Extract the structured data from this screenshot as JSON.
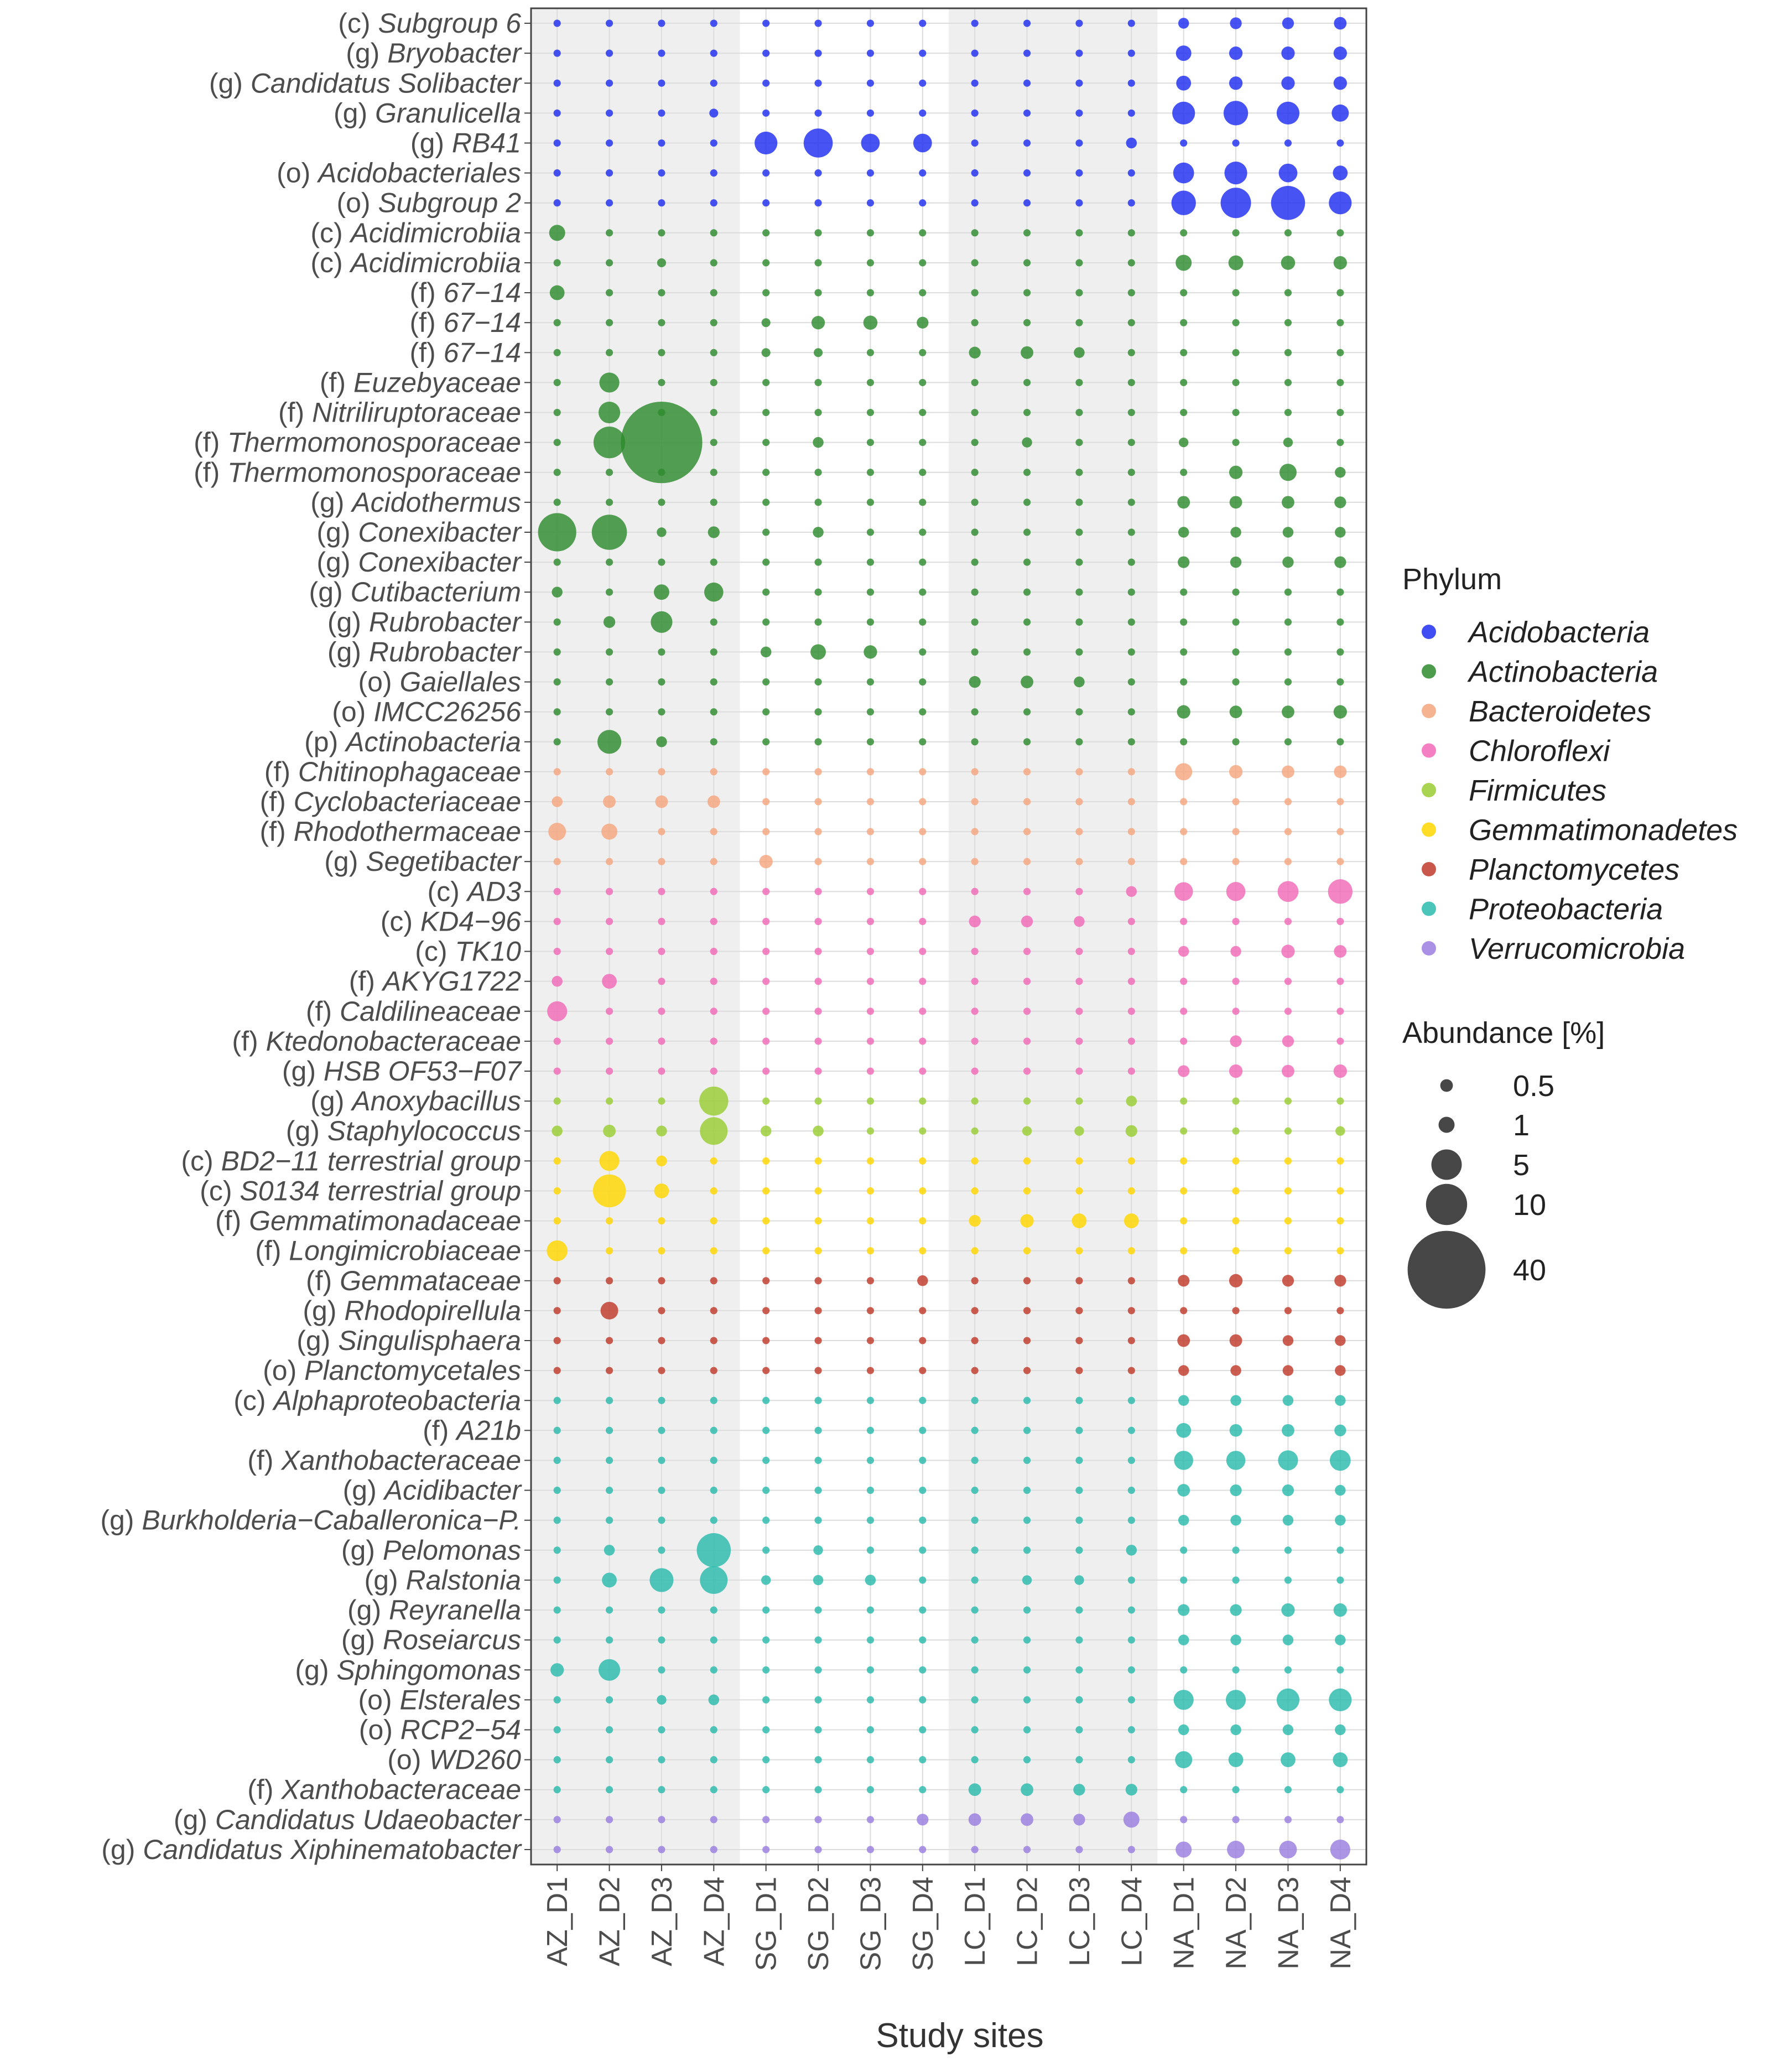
{
  "chart_data": {
    "type": "bubble-matrix",
    "xlabel": "Study sites",
    "ylabel": "",
    "sites": [
      "AZ_D1",
      "AZ_D2",
      "AZ_D3",
      "AZ_D4",
      "SG_D1",
      "SG_D2",
      "SG_D3",
      "SG_D4",
      "LC_D1",
      "LC_D2",
      "LC_D3",
      "LC_D4",
      "NA_D1",
      "NA_D2",
      "NA_D3",
      "NA_D4"
    ],
    "shaded_site_groups": [
      "AZ",
      "LC"
    ],
    "phyla": [
      {
        "name": "Acidobacteria",
        "color": "#1f2ef0"
      },
      {
        "name": "Actinobacteria",
        "color": "#2e8b2e"
      },
      {
        "name": "Bacteroidetes",
        "color": "#f5a67f"
      },
      {
        "name": "Chloroflexi",
        "color": "#f26ab8"
      },
      {
        "name": "Firmicutes",
        "color": "#9acd32"
      },
      {
        "name": "Gemmatimonadetes",
        "color": "#ffd700"
      },
      {
        "name": "Planctomycetes",
        "color": "#c0392b"
      },
      {
        "name": "Proteobacteria",
        "color": "#2bbbad"
      },
      {
        "name": "Verrucomicrobia",
        "color": "#9b7ee0"
      }
    ],
    "legend": {
      "phylum_title": "Phylum",
      "size_title": "Abundance [%]",
      "size_breaks": [
        {
          "value": 0.5,
          "label": "0.5"
        },
        {
          "value": 1,
          "label": "1"
        },
        {
          "value": 5,
          "label": "5"
        },
        {
          "value": 10,
          "label": "10"
        },
        {
          "value": 40,
          "label": "40"
        }
      ]
    },
    "default_abundance": 0.06,
    "taxa": [
      {
        "rank": "(c)",
        "name": "Subgroup 6",
        "phylum": "Acidobacteria",
        "values": {
          "NA_D1": 0.3,
          "NA_D2": 0.4,
          "NA_D3": 0.4,
          "NA_D4": 0.5
        }
      },
      {
        "rank": "(g)",
        "name": "Bryobacter",
        "phylum": "Acidobacteria",
        "values": {
          "NA_D1": 0.9,
          "NA_D2": 0.6,
          "NA_D3": 0.6,
          "NA_D4": 0.6
        }
      },
      {
        "rank": "(g)",
        "name": "Candidatus Solibacter",
        "phylum": "Acidobacteria",
        "values": {
          "NA_D1": 0.8,
          "NA_D2": 0.6,
          "NA_D3": 0.6,
          "NA_D4": 0.6
        }
      },
      {
        "rank": "(g)",
        "name": "Granulicella",
        "phylum": "Acidobacteria",
        "values": {
          "AZ_D4": 0.15,
          "NA_D1": 2.5,
          "NA_D2": 3.0,
          "NA_D3": 2.5,
          "NA_D4": 1.2
        }
      },
      {
        "rank": "(g)",
        "name": "RB41",
        "phylum": "Acidobacteria",
        "values": {
          "SG_D1": 2.5,
          "SG_D2": 4.5,
          "SG_D3": 1.5,
          "SG_D4": 1.5,
          "LC_D4": 0.3
        }
      },
      {
        "rank": "(o)",
        "name": "Acidobacteriales",
        "phylum": "Acidobacteria",
        "values": {
          "NA_D1": 2.0,
          "NA_D2": 2.5,
          "NA_D3": 1.5,
          "NA_D4": 0.8
        }
      },
      {
        "rank": "(o)",
        "name": "Subgroup 2",
        "phylum": "Acidobacteria",
        "values": {
          "NA_D1": 3.0,
          "NA_D2": 5.0,
          "NA_D3": 6.5,
          "NA_D4": 2.5
        }
      },
      {
        "rank": "(c)",
        "name": "Acidimicrobiia",
        "phylum": "Actinobacteria",
        "values": {
          "AZ_D1": 1.0
        }
      },
      {
        "rank": "(c)",
        "name": "Acidimicrobiia",
        "phylum": "Actinobacteria",
        "values": {
          "AZ_D3": 0.15,
          "NA_D1": 1.0,
          "NA_D2": 0.8,
          "NA_D3": 0.7,
          "NA_D4": 0.6
        }
      },
      {
        "rank": "(f)",
        "name": "67−14",
        "phylum": "Actinobacteria",
        "values": {
          "AZ_D1": 0.8
        }
      },
      {
        "rank": "(f)",
        "name": "67−14",
        "phylum": "Actinobacteria",
        "values": {
          "SG_D1": 0.15,
          "SG_D2": 0.6,
          "SG_D3": 0.7,
          "SG_D4": 0.4
        }
      },
      {
        "rank": "(f)",
        "name": "67−14",
        "phylum": "Actinobacteria",
        "values": {
          "SG_D1": 0.15,
          "SG_D2": 0.15,
          "LC_D1": 0.4,
          "LC_D2": 0.5,
          "LC_D3": 0.3
        }
      },
      {
        "rank": "(f)",
        "name": "Euzebyaceae",
        "phylum": "Actinobacteria",
        "values": {
          "AZ_D2": 1.8
        }
      },
      {
        "rank": "(f)",
        "name": "Nitriliruptoraceae",
        "phylum": "Actinobacteria",
        "values": {
          "AZ_D2": 2.2
        }
      },
      {
        "rank": "(f)",
        "name": "Thermomonosporaceae",
        "phylum": "Actinobacteria",
        "values": {
          "AZ_D2": 5.5,
          "AZ_D3": 44,
          "SG_D2": 0.3,
          "LC_D2": 0.25,
          "NA_D1": 0.2,
          "NA_D3": 0.2
        }
      },
      {
        "rank": "(f)",
        "name": "Thermomonosporaceae",
        "phylum": "Actinobacteria",
        "values": {
          "NA_D2": 0.6,
          "NA_D3": 1.2,
          "NA_D4": 0.3
        }
      },
      {
        "rank": "(g)",
        "name": "Acidothermus",
        "phylum": "Actinobacteria",
        "values": {
          "NA_D1": 0.5,
          "NA_D2": 0.5,
          "NA_D3": 0.5,
          "NA_D4": 0.4
        }
      },
      {
        "rank": "(g)",
        "name": "Conexibacter",
        "phylum": "Actinobacteria",
        "values": {
          "AZ_D1": 8.5,
          "AZ_D2": 7.0,
          "AZ_D3": 0.2,
          "AZ_D4": 0.4,
          "SG_D2": 0.3,
          "NA_D1": 0.3,
          "NA_D2": 0.3,
          "NA_D3": 0.3,
          "NA_D4": 0.3
        }
      },
      {
        "rank": "(g)",
        "name": "Conexibacter",
        "phylum": "Actinobacteria",
        "values": {
          "NA_D1": 0.4,
          "NA_D2": 0.35,
          "NA_D3": 0.35,
          "NA_D4": 0.4
        }
      },
      {
        "rank": "(g)",
        "name": "Cutibacterium",
        "phylum": "Actinobacteria",
        "values": {
          "AZ_D1": 0.3,
          "AZ_D3": 0.9,
          "AZ_D4": 1.6
        }
      },
      {
        "rank": "(g)",
        "name": "Rubrobacter",
        "phylum": "Actinobacteria",
        "values": {
          "AZ_D2": 0.4,
          "AZ_D3": 2.2
        }
      },
      {
        "rank": "(g)",
        "name": "Rubrobacter",
        "phylum": "Actinobacteria",
        "values": {
          "SG_D1": 0.3,
          "SG_D2": 0.9,
          "SG_D3": 0.6
        }
      },
      {
        "rank": "(o)",
        "name": "Gaiellales",
        "phylum": "Actinobacteria",
        "values": {
          "LC_D1": 0.4,
          "LC_D2": 0.5,
          "LC_D3": 0.3
        }
      },
      {
        "rank": "(o)",
        "name": "IMCC26256",
        "phylum": "Actinobacteria",
        "values": {
          "NA_D1": 0.6,
          "NA_D2": 0.5,
          "NA_D3": 0.5,
          "NA_D4": 0.6
        }
      },
      {
        "rank": "(p)",
        "name": "Actinobacteria",
        "phylum": "Actinobacteria",
        "values": {
          "AZ_D2": 2.8,
          "AZ_D3": 0.3
        }
      },
      {
        "rank": "(f)",
        "name": "Chitinophagaceae",
        "phylum": "Bacteroidetes",
        "values": {
          "NA_D1": 1.2,
          "NA_D2": 0.6,
          "NA_D3": 0.5,
          "NA_D4": 0.5
        }
      },
      {
        "rank": "(f)",
        "name": "Cyclobacteriaceae",
        "phylum": "Bacteroidetes",
        "values": {
          "AZ_D1": 0.3,
          "AZ_D2": 0.5,
          "AZ_D3": 0.5,
          "AZ_D4": 0.5
        }
      },
      {
        "rank": "(f)",
        "name": "Rhodothermaceae",
        "phylum": "Bacteroidetes",
        "values": {
          "AZ_D1": 1.3,
          "AZ_D2": 1.0
        }
      },
      {
        "rank": "(g)",
        "name": "Segetibacter",
        "phylum": "Bacteroidetes",
        "values": {
          "SG_D1": 0.6
        }
      },
      {
        "rank": "(c)",
        "name": "AD3",
        "phylum": "Chloroflexi",
        "values": {
          "LC_D4": 0.3,
          "NA_D1": 1.5,
          "NA_D2": 1.6,
          "NA_D3": 2.0,
          "NA_D4": 3.0
        }
      },
      {
        "rank": "(c)",
        "name": "KD4−96",
        "phylum": "Chloroflexi",
        "values": {
          "LC_D1": 0.4,
          "LC_D2": 0.4,
          "LC_D3": 0.3
        }
      },
      {
        "rank": "(c)",
        "name": "TK10",
        "phylum": "Chloroflexi",
        "values": {
          "NA_D1": 0.3,
          "NA_D2": 0.3,
          "NA_D3": 0.6,
          "NA_D4": 0.5
        }
      },
      {
        "rank": "(f)",
        "name": "AKYG1722",
        "phylum": "Chloroflexi",
        "values": {
          "AZ_D1": 0.3,
          "AZ_D2": 0.8
        }
      },
      {
        "rank": "(f)",
        "name": "Caldilineaceae",
        "phylum": "Chloroflexi",
        "values": {
          "AZ_D1": 1.8
        }
      },
      {
        "rank": "(f)",
        "name": "Ktedonobacteraceae",
        "phylum": "Chloroflexi",
        "values": {
          "NA_D2": 0.4,
          "NA_D3": 0.4
        }
      },
      {
        "rank": "(g)",
        "name": "HSB OF53−F07",
        "phylum": "Chloroflexi",
        "values": {
          "NA_D1": 0.4,
          "NA_D2": 0.6,
          "NA_D3": 0.5,
          "NA_D4": 0.6
        }
      },
      {
        "rank": "(g)",
        "name": "Anoxybacillus",
        "phylum": "Firmicutes",
        "values": {
          "AZ_D4": 4.5,
          "LC_D4": 0.3
        }
      },
      {
        "rank": "(g)",
        "name": "Staphylococcus",
        "phylum": "Firmicutes",
        "values": {
          "AZ_D1": 0.3,
          "AZ_D2": 0.5,
          "AZ_D3": 0.3,
          "AZ_D4": 4.0,
          "SG_D1": 0.3,
          "SG_D2": 0.3,
          "LC_D2": 0.2,
          "LC_D3": 0.2,
          "LC_D4": 0.4,
          "NA_D4": 0.2
        }
      },
      {
        "rank": "(c)",
        "name": "BD2−11 terrestrial group",
        "phylum": "Gemmatimonadetes",
        "values": {
          "AZ_D2": 1.8,
          "AZ_D3": 0.3
        }
      },
      {
        "rank": "(c)",
        "name": "S0134 terrestrial group",
        "phylum": "Gemmatimonadetes",
        "values": {
          "AZ_D2": 6.0,
          "AZ_D3": 0.8
        }
      },
      {
        "rank": "(f)",
        "name": "Gemmatimonadaceae",
        "phylum": "Gemmatimonadetes",
        "values": {
          "LC_D1": 0.4,
          "LC_D2": 0.6,
          "LC_D3": 0.8,
          "LC_D4": 0.8
        }
      },
      {
        "rank": "(f)",
        "name": "Longimicrobiaceae",
        "phylum": "Gemmatimonadetes",
        "values": {
          "AZ_D1": 2.0
        }
      },
      {
        "rank": "(f)",
        "name": "Gemmataceae",
        "phylum": "Planctomycetes",
        "values": {
          "SG_D4": 0.3,
          "NA_D1": 0.4,
          "NA_D2": 0.6,
          "NA_D3": 0.4,
          "NA_D4": 0.4
        }
      },
      {
        "rank": "(g)",
        "name": "Rhodopirellula",
        "phylum": "Planctomycetes",
        "values": {
          "AZ_D2": 1.3
        }
      },
      {
        "rank": "(g)",
        "name": "Singulisphaera",
        "phylum": "Planctomycetes",
        "values": {
          "NA_D1": 0.5,
          "NA_D2": 0.5,
          "NA_D3": 0.3,
          "NA_D4": 0.3
        }
      },
      {
        "rank": "(o)",
        "name": "Planctomycetales",
        "phylum": "Planctomycetes",
        "values": {
          "NA_D1": 0.3,
          "NA_D2": 0.3,
          "NA_D3": 0.3,
          "NA_D4": 0.3
        }
      },
      {
        "rank": "(c)",
        "name": "Alphaproteobacteria",
        "phylum": "Proteobacteria",
        "values": {
          "NA_D1": 0.3,
          "NA_D2": 0.3,
          "NA_D3": 0.3,
          "NA_D4": 0.3
        }
      },
      {
        "rank": "(f)",
        "name": "A21b",
        "phylum": "Proteobacteria",
        "values": {
          "NA_D1": 0.8,
          "NA_D2": 0.5,
          "NA_D3": 0.5,
          "NA_D4": 0.4
        }
      },
      {
        "rank": "(f)",
        "name": "Xanthobacteraceae",
        "phylum": "Proteobacteria",
        "values": {
          "NA_D1": 1.6,
          "NA_D2": 1.6,
          "NA_D3": 1.8,
          "NA_D4": 2.0
        }
      },
      {
        "rank": "(g)",
        "name": "Acidibacter",
        "phylum": "Proteobacteria",
        "values": {
          "NA_D1": 0.5,
          "NA_D2": 0.4,
          "NA_D3": 0.4,
          "NA_D4": 0.3
        }
      },
      {
        "rank": "(g)",
        "name": "Burkholderia−Caballeronica−P.",
        "phylum": "Proteobacteria",
        "values": {
          "NA_D1": 0.3,
          "NA_D2": 0.3,
          "NA_D3": 0.3,
          "NA_D4": 0.3
        }
      },
      {
        "rank": "(g)",
        "name": "Pelomonas",
        "phylum": "Proteobacteria",
        "values": {
          "AZ_D2": 0.3,
          "AZ_D4": 6.5,
          "SG_D2": 0.2,
          "LC_D4": 0.3
        }
      },
      {
        "rank": "(g)",
        "name": "Ralstonia",
        "phylum": "Proteobacteria",
        "values": {
          "AZ_D2": 0.8,
          "AZ_D3": 2.8,
          "AZ_D4": 4.0,
          "SG_D1": 0.2,
          "SG_D2": 0.25,
          "SG_D3": 0.3,
          "LC_D2": 0.2,
          "LC_D3": 0.2
        }
      },
      {
        "rank": "(g)",
        "name": "Reyranella",
        "phylum": "Proteobacteria",
        "values": {
          "NA_D1": 0.4,
          "NA_D2": 0.4,
          "NA_D3": 0.6,
          "NA_D4": 0.6
        }
      },
      {
        "rank": "(g)",
        "name": "Roseiarcus",
        "phylum": "Proteobacteria",
        "values": {
          "NA_D1": 0.3,
          "NA_D2": 0.3,
          "NA_D3": 0.3,
          "NA_D4": 0.3
        }
      },
      {
        "rank": "(g)",
        "name": "Sphingomonas",
        "phylum": "Proteobacteria",
        "values": {
          "AZ_D1": 0.6,
          "AZ_D2": 2.2
        }
      },
      {
        "rank": "(o)",
        "name": "Elsterales",
        "phylum": "Proteobacteria",
        "values": {
          "AZ_D3": 0.2,
          "AZ_D4": 0.3,
          "NA_D1": 1.8,
          "NA_D2": 1.8,
          "NA_D3": 2.5,
          "NA_D4": 2.5
        }
      },
      {
        "rank": "(o)",
        "name": "RCP2−54",
        "phylum": "Proteobacteria",
        "values": {
          "NA_D1": 0.3,
          "NA_D2": 0.3,
          "NA_D3": 0.3,
          "NA_D4": 0.3
        }
      },
      {
        "rank": "(o)",
        "name": "WD260",
        "phylum": "Proteobacteria",
        "values": {
          "NA_D1": 1.2,
          "NA_D2": 0.8,
          "NA_D3": 0.8,
          "NA_D4": 0.8
        }
      },
      {
        "rank": "(f)",
        "name": "Xanthobacteraceae",
        "phylum": "Proteobacteria",
        "values": {
          "LC_D1": 0.5,
          "LC_D2": 0.5,
          "LC_D3": 0.4,
          "LC_D4": 0.4
        }
      },
      {
        "rank": "(g)",
        "name": "Candidatus Udaeobacter",
        "phylum": "Verrucomicrobia",
        "values": {
          "SG_D4": 0.4,
          "LC_D1": 0.5,
          "LC_D2": 0.5,
          "LC_D3": 0.4,
          "LC_D4": 1.0
        }
      },
      {
        "rank": "(g)",
        "name": "Candidatus Xiphinematobacter",
        "phylum": "Verrucomicrobia",
        "values": {
          "NA_D1": 1.0,
          "NA_D2": 1.3,
          "NA_D3": 1.3,
          "NA_D4": 1.8
        }
      }
    ]
  }
}
